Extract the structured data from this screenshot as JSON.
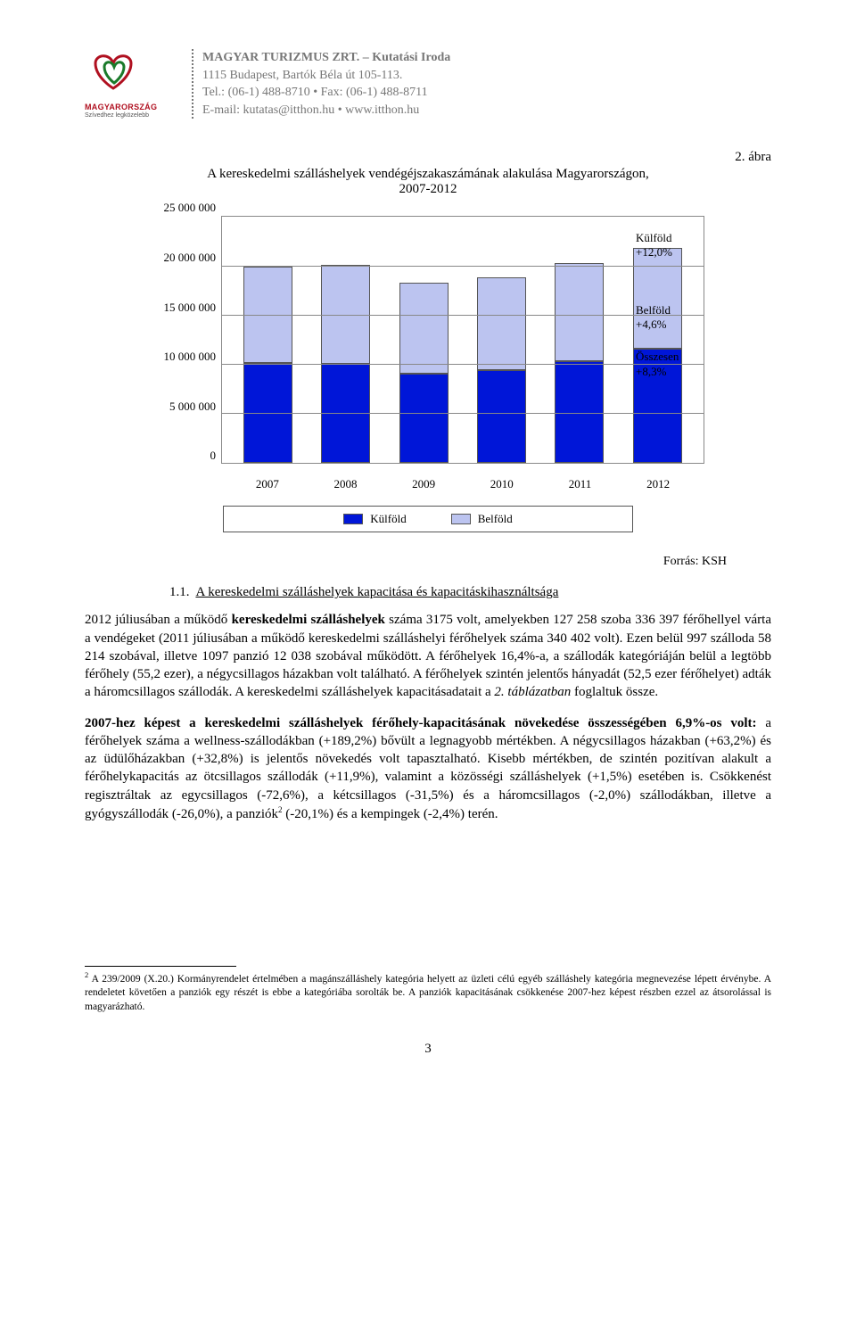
{
  "header": {
    "org": "MAGYAR TURIZMUS ZRT. – Kutatási Iroda",
    "address": "1115 Budapest, Bartók Béla út 105-113.",
    "contact": "Tel.: (06-1) 488-8710 • Fax: (06-1) 488-8711",
    "email": "E-mail: kutatas@itthon.hu • www.itthon.hu",
    "logo_name": "MAGYARORSZÁG",
    "logo_tagline": "Szívedhez legközelebb"
  },
  "figure": {
    "label": "2. ábra",
    "caption_line1": "A kereskedelmi szálláshelyek vendégéjszakaszámának alakulása Magyarországon,",
    "caption_line2": "2007-2012",
    "source_label": "Forrás: KSH"
  },
  "chart": {
    "type": "stacked-bar",
    "y_ticks": [
      "0",
      "5 000 000",
      "10 000 000",
      "15 000 000",
      "20 000 000",
      "25 000 000"
    ],
    "y_max": 25000000,
    "categories": [
      "2007",
      "2008",
      "2009",
      "2010",
      "2011",
      "2012"
    ],
    "series": [
      {
        "name": "Külföld",
        "label": "Külföld",
        "color": "#0016d8"
      },
      {
        "name": "Belföld",
        "label": "Belföld",
        "color": "#bcc4f0"
      }
    ],
    "values_kulfold": [
      10200000,
      10100000,
      9100000,
      9500000,
      10400000,
      11600000
    ],
    "values_belfold": [
      9800000,
      10000000,
      9200000,
      9400000,
      9900000,
      10300000
    ],
    "side_annotations": [
      {
        "line1": "Külföld",
        "line2": "+12,0%",
        "top_pct": 6
      },
      {
        "line1": "Belföld",
        "line2": "+4,6%",
        "top_pct": 35
      },
      {
        "line1": "Összesen",
        "line2": "+8,3%",
        "top_pct": 54
      }
    ],
    "colors": {
      "grid": "#888888",
      "border": "#888888",
      "background": "#ffffff"
    }
  },
  "subheading": {
    "num": "1.1.",
    "txt": "A kereskedelmi szálláshelyek kapacitása és kapacitáskihasználtsága"
  },
  "para1": "2012 júliusában a működő <span class=\"bold\">kereskedelmi szálláshelyek</span> száma 3175 volt, amelyekben 127 258 szoba 336 397 férőhellyel várta a vendégeket (2011 júliusában a működő kereskedelmi szálláshelyi férőhelyek száma 340 402 volt). Ezen belül 997 szálloda 58 214 szobával, illetve 1097 panzió 12 038 szobával működött. A férőhelyek 16,4%-a, a szállodák kategóriáján belül a legtöbb férőhely (55,2 ezer), a négycsillagos házakban volt található. A férőhelyek szintén jelentős hányadát (52,5 ezer férőhelyet) adták a háromcsillagos szállodák. A kereskedelmi szálláshelyek kapacitásadatait a <span class=\"emph\">2. táblázatban</span> foglaltuk össze.",
  "para2": "<span class=\"bold\">2007-hez képest a kereskedelmi szálláshelyek férőhely-kapacitásának növekedése összességében 6,9%-os volt:</span> a férőhelyek száma a wellness-szállodákban (+189,2%) bővült a legnagyobb mértékben. A négycsillagos házakban (+63,2%) és az üdülőházakban (+32,8%) is jelentős növekedés volt tapasztalható. Kisebb mértékben, de szintén pozitívan alakult a férőhelykapacitás az ötcsillagos szállodák (+11,9%), valamint a közösségi szálláshelyek (+1,5%) esetében is. Csökkenést regisztráltak az egycsillagos (-72,6%), a kétcsillagos (-31,5%) és a háromcsillagos (-2,0%) szállodákban, illetve a gyógyszállodák (-26,0%), a panziók<span class=\"sup\">2</span> (-20,1%) és a kempingek (-2,4%) terén.",
  "footnote": {
    "mark": "2",
    "text": "A 239/2009 (X.20.) Kormányrendelet értelmében a magánszálláshely kategória helyett az üzleti célú egyéb szálláshely kategória megnevezése lépett érvénybe. A rendeletet követően a panziók egy részét is ebbe a kategóriába sorolták be. A panziók kapacitásának csökkenése 2007-hez képest részben ezzel az átsorolással is magyarázható."
  },
  "page_number": "3"
}
